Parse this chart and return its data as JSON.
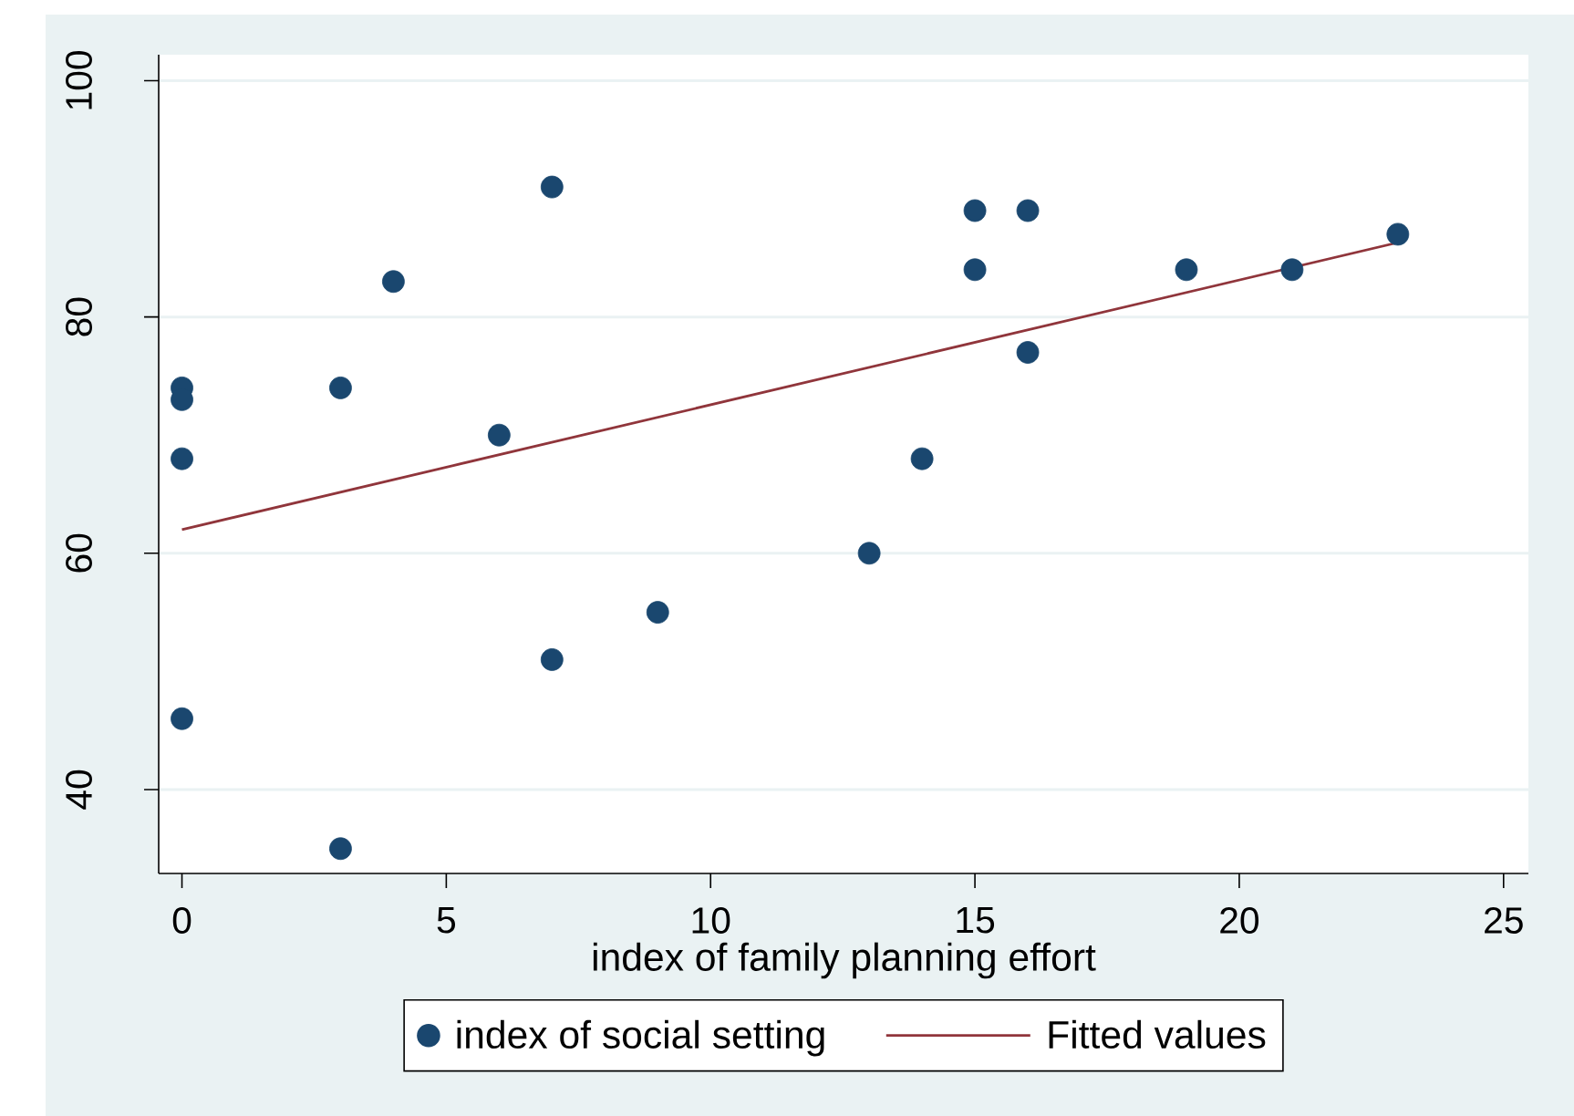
{
  "chart_data": {
    "type": "scatter",
    "xlabel": "index of family planning effort",
    "xlim": [
      -0.44,
      25.47
    ],
    "ylim": [
      32.9,
      102.2
    ],
    "xticks": [
      0,
      5,
      10,
      15,
      20,
      25
    ],
    "yticks": [
      40,
      60,
      80,
      100
    ],
    "grid": "y",
    "legend": "bottom",
    "marker": "circle",
    "series": [
      {
        "name": "index of social setting",
        "color": "#1a476f",
        "x": [
          0,
          0,
          0,
          0,
          3,
          3,
          4,
          6,
          7,
          7,
          9,
          13,
          14,
          15,
          15,
          16,
          16,
          19,
          21,
          23
        ],
        "values": [
          74,
          73,
          68,
          46,
          74,
          35,
          83,
          70,
          91,
          51,
          55,
          60,
          68,
          89,
          84,
          89,
          77,
          84,
          84,
          87
        ]
      },
      {
        "name": "Fitted values",
        "type": "line",
        "color": "#90353b",
        "marker": "none",
        "x": [
          0,
          23
        ],
        "values": [
          62.0,
          86.3
        ]
      }
    ]
  }
}
